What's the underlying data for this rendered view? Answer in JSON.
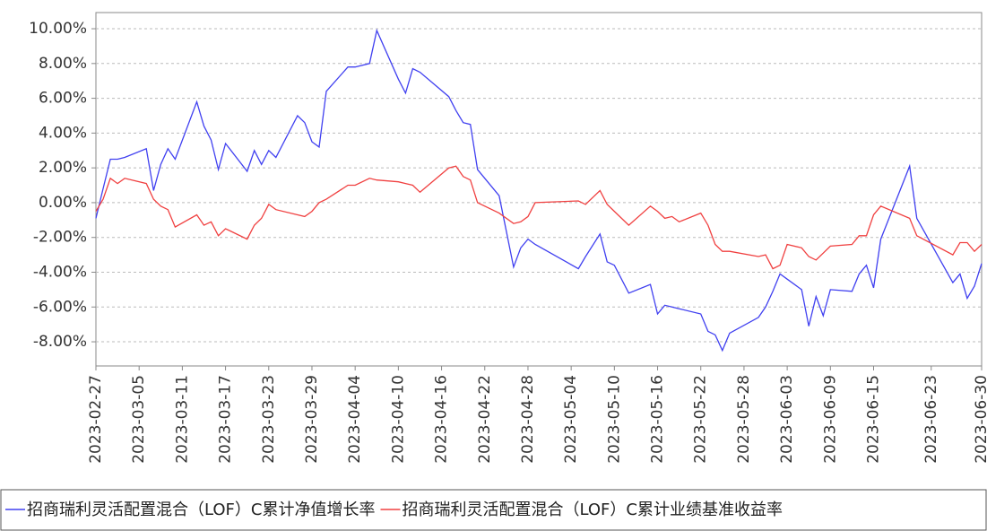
{
  "chart_data": {
    "type": "line",
    "x": [
      "2023-02-27",
      "2023-02-28",
      "2023-03-01",
      "2023-03-02",
      "2023-03-03",
      "2023-03-06",
      "2023-03-07",
      "2023-03-08",
      "2023-03-09",
      "2023-03-10",
      "2023-03-13",
      "2023-03-14",
      "2023-03-15",
      "2023-03-16",
      "2023-03-17",
      "2023-03-20",
      "2023-03-21",
      "2023-03-22",
      "2023-03-23",
      "2023-03-24",
      "2023-03-27",
      "2023-03-28",
      "2023-03-29",
      "2023-03-30",
      "2023-03-31",
      "2023-04-03",
      "2023-04-04",
      "2023-04-06",
      "2023-04-07",
      "2023-04-10",
      "2023-04-11",
      "2023-04-12",
      "2023-04-13",
      "2023-04-17",
      "2023-04-18",
      "2023-04-19",
      "2023-04-20",
      "2023-04-21",
      "2023-04-24",
      "2023-04-26",
      "2023-04-27",
      "2023-04-28",
      "2023-04-29",
      "2023-05-05",
      "2023-05-06",
      "2023-05-08",
      "2023-05-09",
      "2023-05-10",
      "2023-05-12",
      "2023-05-15",
      "2023-05-16",
      "2023-05-17",
      "2023-05-18",
      "2023-05-19",
      "2023-05-22",
      "2023-05-23",
      "2023-05-24",
      "2023-05-25",
      "2023-05-26",
      "2023-05-30",
      "2023-05-31",
      "2023-06-01",
      "2023-06-02",
      "2023-06-03",
      "2023-06-05",
      "2023-06-06",
      "2023-06-07",
      "2023-06-08",
      "2023-06-09",
      "2023-06-12",
      "2023-06-13",
      "2023-06-14",
      "2023-06-15",
      "2023-06-16",
      "2023-06-20",
      "2023-06-21",
      "2023-06-26",
      "2023-06-27",
      "2023-06-28",
      "2023-06-29",
      "2023-06-30"
    ],
    "series": [
      {
        "name": "招商瑞利灵活配置混合（LOF）C累计净值增长率",
        "color": "#4040f0",
        "values": [
          -0.9,
          0.8,
          2.5,
          2.5,
          2.6,
          3.1,
          0.7,
          2.2,
          3.1,
          2.5,
          5.8,
          4.4,
          3.6,
          1.9,
          3.4,
          1.8,
          3.0,
          2.2,
          3.0,
          2.6,
          5.0,
          4.6,
          3.5,
          3.2,
          6.4,
          7.8,
          7.8,
          8.0,
          9.9,
          7.1,
          6.3,
          7.7,
          7.5,
          6.1,
          5.3,
          4.6,
          4.5,
          1.9,
          0.4,
          -3.7,
          -2.6,
          -2.1,
          -2.4,
          -3.8,
          -3.1,
          -1.8,
          -3.4,
          -3.6,
          -5.2,
          -4.7,
          -6.4,
          -5.9,
          -6.0,
          -6.1,
          -6.4,
          -7.4,
          -7.6,
          -8.5,
          -7.5,
          -6.6,
          -6.0,
          -5.1,
          -4.1,
          -4.4,
          -5.0,
          -7.1,
          -5.4,
          -6.5,
          -5.0,
          -5.1,
          -4.1,
          -3.6,
          -4.9,
          -2.1,
          2.1,
          -0.9,
          -4.6,
          -4.1,
          -5.5,
          -4.8,
          -3.5
        ]
      },
      {
        "name": "招商瑞利灵活配置混合（LOF）C累计业绩基准收益率",
        "color": "#f04040",
        "values": [
          -0.5,
          0.2,
          1.4,
          1.1,
          1.4,
          1.1,
          0.2,
          -0.2,
          -0.4,
          -1.4,
          -0.7,
          -1.3,
          -1.1,
          -1.9,
          -1.5,
          -2.1,
          -1.3,
          -0.9,
          -0.1,
          -0.4,
          -0.7,
          -0.8,
          -0.5,
          0.0,
          0.2,
          1.0,
          1.0,
          1.4,
          1.3,
          1.2,
          1.1,
          1.0,
          0.6,
          2.0,
          2.1,
          1.5,
          1.3,
          0.0,
          -0.6,
          -1.2,
          -1.1,
          -0.8,
          0.0,
          0.1,
          -0.1,
          0.7,
          -0.1,
          -0.5,
          -1.3,
          -0.2,
          -0.5,
          -0.9,
          -0.8,
          -1.1,
          -0.6,
          -1.3,
          -2.4,
          -2.8,
          -2.8,
          -3.1,
          -3.0,
          -3.8,
          -3.6,
          -2.4,
          -2.6,
          -3.1,
          -3.3,
          -2.9,
          -2.5,
          -2.4,
          -1.9,
          -1.9,
          -0.7,
          -0.2,
          -0.9,
          -1.9,
          -3.0,
          -2.3,
          -2.3,
          -2.8,
          -2.4
        ]
      }
    ],
    "xlim": [
      "2023-02-27",
      "2023-06-30"
    ],
    "xticks": [
      "2023-02-27",
      "2023-03-05",
      "2023-03-11",
      "2023-03-17",
      "2023-03-23",
      "2023-03-29",
      "2023-04-04",
      "2023-04-10",
      "2023-04-16",
      "2023-04-22",
      "2023-04-28",
      "2023-05-04",
      "2023-05-10",
      "2023-05-16",
      "2023-05-22",
      "2023-05-28",
      "2023-06-03",
      "2023-06-09",
      "2023-06-15",
      "2023-06-23",
      "2023-06-30"
    ],
    "ylim": [
      -9.39,
      10.93
    ],
    "yticks": [
      {
        "value": -8,
        "label": "-8.00%"
      },
      {
        "value": -6,
        "label": "-6.00%"
      },
      {
        "value": -4,
        "label": "-4.00%"
      },
      {
        "value": -2,
        "label": "-2.00%"
      },
      {
        "value": 0,
        "label": "0.00%"
      },
      {
        "value": 2,
        "label": "2.00%"
      },
      {
        "value": 4,
        "label": "4.00%"
      },
      {
        "value": 6,
        "label": "6.00%"
      },
      {
        "value": 8,
        "label": "8.00%"
      },
      {
        "value": 10,
        "label": "10.00%"
      }
    ],
    "grid": true
  }
}
